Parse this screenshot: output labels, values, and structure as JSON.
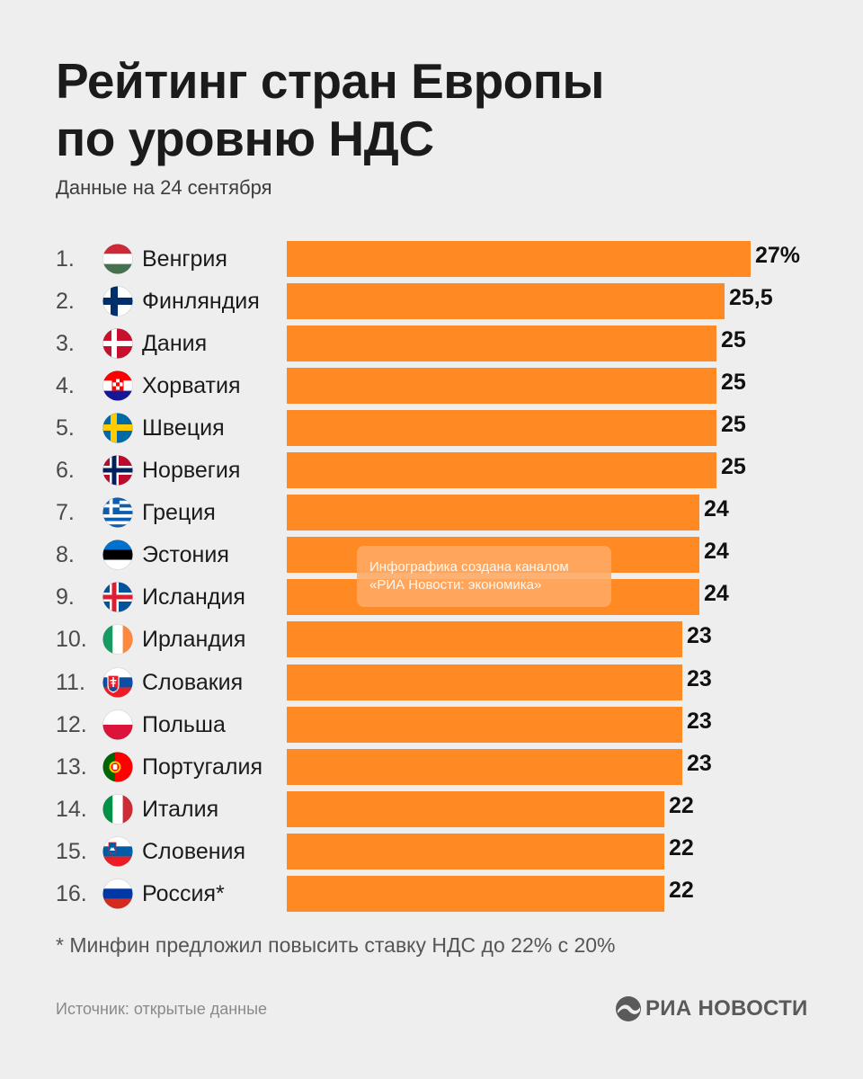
{
  "title_line1": "Рейтинг стран Европы",
  "title_line2": "по уровню НДС",
  "subtitle": "Данные на 24 сентября",
  "watermark": {
    "line1": "Инфографика создана каналом",
    "line2": "«РИА Новости: экономика»"
  },
  "footnote": "* Минфин предложил повысить ставку НДС до 22% с 20%",
  "source": "Источник: открытые данные",
  "logo": "РИА НОВОСТИ",
  "colors": {
    "bar": "#ff8a24",
    "background": "#eeeeee"
  },
  "chart_data": {
    "type": "bar",
    "orientation": "horizontal",
    "unit": "%",
    "xlim": [
      0,
      27
    ],
    "categories": [
      {
        "rank": "1.",
        "name": "Венгрия",
        "flag": "hungary-flag",
        "value": 27,
        "label": "27%"
      },
      {
        "rank": "2.",
        "name": "Финляндия",
        "flag": "finland-flag",
        "value": 25.5,
        "label": "25,5"
      },
      {
        "rank": "3.",
        "name": "Дания",
        "flag": "denmark-flag",
        "value": 25,
        "label": "25"
      },
      {
        "rank": "4.",
        "name": "Хорватия",
        "flag": "croatia-flag",
        "value": 25,
        "label": "25"
      },
      {
        "rank": "5.",
        "name": "Швеция",
        "flag": "sweden-flag",
        "value": 25,
        "label": "25"
      },
      {
        "rank": "6.",
        "name": "Норвегия",
        "flag": "norway-flag",
        "value": 25,
        "label": "25"
      },
      {
        "rank": "7.",
        "name": "Греция",
        "flag": "greece-flag",
        "value": 24,
        "label": "24"
      },
      {
        "rank": "8.",
        "name": "Эстония",
        "flag": "estonia-flag",
        "value": 24,
        "label": "24"
      },
      {
        "rank": "9.",
        "name": "Исландия",
        "flag": "iceland-flag",
        "value": 24,
        "label": "24"
      },
      {
        "rank": "10.",
        "name": "Ирландия",
        "flag": "ireland-flag",
        "value": 23,
        "label": "23"
      },
      {
        "rank": "11.",
        "name": "Словакия",
        "flag": "slovakia-flag",
        "value": 23,
        "label": "23"
      },
      {
        "rank": "12.",
        "name": "Польша",
        "flag": "poland-flag",
        "value": 23,
        "label": "23"
      },
      {
        "rank": "13.",
        "name": "Португалия",
        "flag": "portugal-flag",
        "value": 23,
        "label": "23"
      },
      {
        "rank": "14.",
        "name": "Италия",
        "flag": "italy-flag",
        "value": 22,
        "label": "22"
      },
      {
        "rank": "15.",
        "name": "Словения",
        "flag": "slovenia-flag",
        "value": 22,
        "label": "22"
      },
      {
        "rank": "16.",
        "name": "Россия*",
        "flag": "russia-flag",
        "value": 22,
        "label": "22"
      }
    ]
  }
}
